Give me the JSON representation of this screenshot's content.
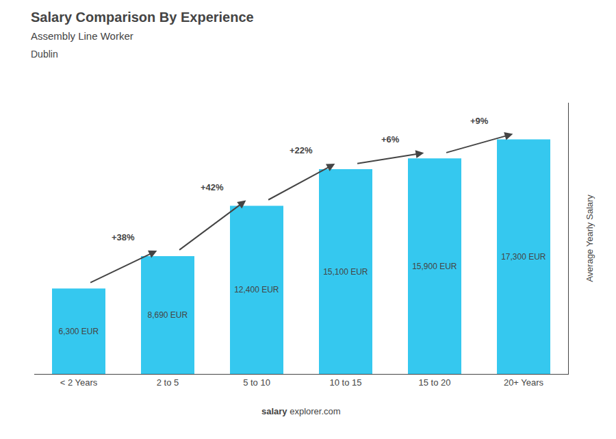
{
  "chart_data": {
    "type": "bar",
    "title": "Salary Comparison By Experience",
    "subtitle": "Assembly Line Worker",
    "annotations": {
      "city": "Dublin",
      "changes": [
        "+38%",
        "+42%",
        "+22%",
        "+6%",
        "+9%"
      ],
      "footer": [
        "salary",
        "explorer.com"
      ]
    },
    "ylabel": "Average Yearly Salary",
    "categories": [
      "< 2 Years",
      "2 to 5",
      "5 to 10",
      "10 to 15",
      "15 to 20",
      "20+ Years"
    ],
    "values": [
      6300,
      8690,
      12400,
      15100,
      15900,
      17300
    ],
    "value_labels": [
      "6,300 EUR",
      "8,690 EUR",
      "12,400 EUR",
      "15,100 EUR",
      "15,900 EUR",
      "17,300 EUR"
    ],
    "data_labels": true,
    "color": "#35c8ef",
    "ylim": [
      0,
      20000
    ],
    "grid": false,
    "tick_labels": "x"
  }
}
